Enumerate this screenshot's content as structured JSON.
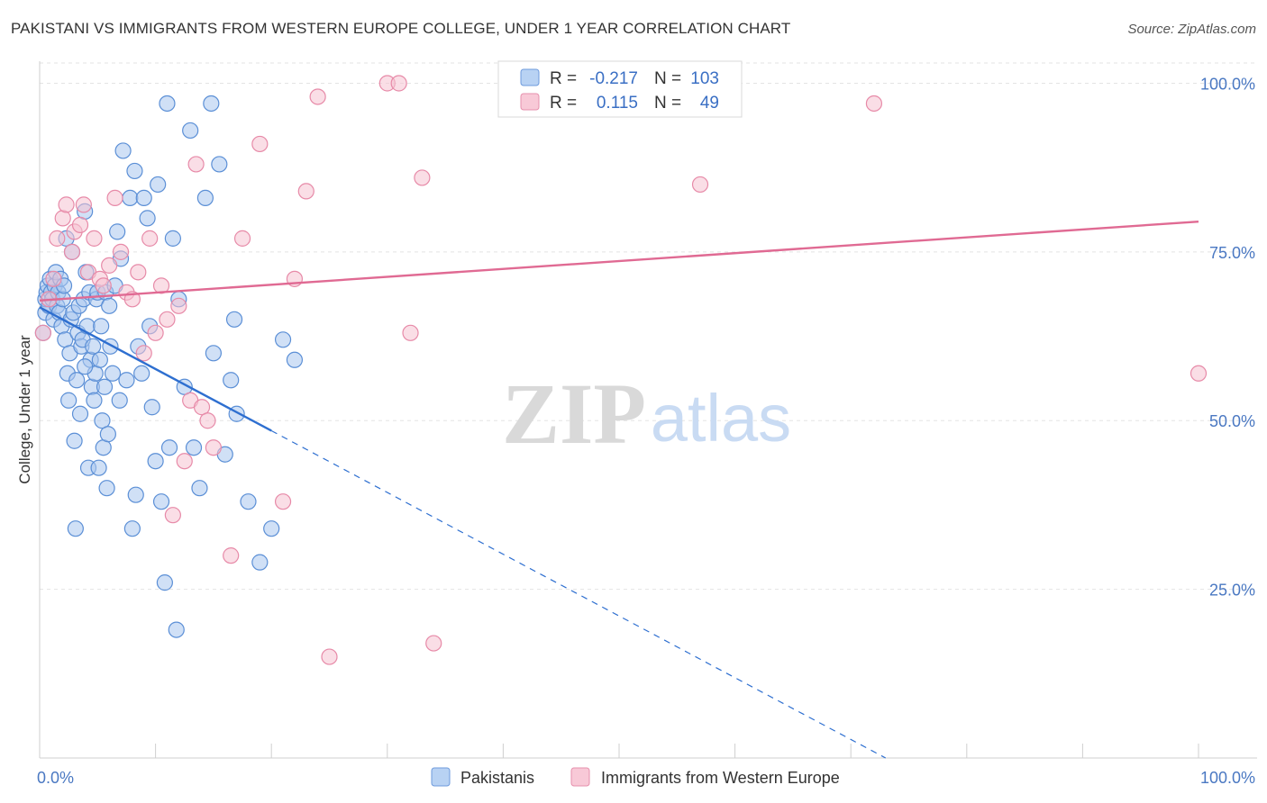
{
  "header": {
    "title": "PAKISTANI VS IMMIGRANTS FROM WESTERN EUROPE COLLEGE, UNDER 1 YEAR CORRELATION CHART",
    "source": "Source: ZipAtlas.com"
  },
  "watermark": {
    "zip": "ZIP",
    "atlas": "atlas"
  },
  "colors": {
    "blue_fill": "#a9c7ee",
    "blue_stroke": "#5b8fd6",
    "blue_line": "#2e6fd0",
    "pink_fill": "#f6c3d2",
    "pink_stroke": "#e78aa8",
    "pink_line": "#e06a93",
    "tick": "#4a78c2",
    "grid": "#e3e3e3"
  },
  "legend": {
    "rows": [
      {
        "r_label": "R =",
        "r_value": "-0.217",
        "n_label": "N =",
        "n_value": "103"
      },
      {
        "r_label": "R =",
        "r_value": "0.115",
        "n_label": "N =",
        "n_value": "49"
      }
    ]
  },
  "chart_data": {
    "type": "scatter",
    "title": "PAKISTANI VS IMMIGRANTS FROM WESTERN EUROPE COLLEGE, UNDER 1 YEAR CORRELATION CHART",
    "xlabel": "",
    "ylabel": "College, Under 1 year",
    "xlim": [
      0,
      100
    ],
    "ylim": [
      0,
      103
    ],
    "x_tick_labels": [
      "0.0%",
      "100.0%"
    ],
    "y_ticks": [
      25,
      50,
      75,
      100
    ],
    "y_tick_labels": [
      "25.0%",
      "50.0%",
      "75.0%",
      "100.0%"
    ],
    "legend_position": "bottom",
    "series": [
      {
        "name": "Pakistanis",
        "color": "blue",
        "r": -0.217,
        "n": 103,
        "trend": {
          "solid": [
            [
              0,
              66.8
            ],
            [
              20,
              48.5
            ]
          ],
          "dashed": [
            [
              20,
              48.5
            ],
            [
              73,
              0
            ]
          ]
        },
        "points": [
          [
            0.3,
            63
          ],
          [
            0.5,
            66
          ],
          [
            0.5,
            68
          ],
          [
            0.6,
            69
          ],
          [
            0.7,
            70
          ],
          [
            0.8,
            67
          ],
          [
            0.9,
            71
          ],
          [
            1.0,
            69
          ],
          [
            1.1,
            68
          ],
          [
            1.2,
            65
          ],
          [
            1.3,
            70
          ],
          [
            1.4,
            72
          ],
          [
            1.5,
            67
          ],
          [
            1.6,
            69
          ],
          [
            1.7,
            66
          ],
          [
            1.8,
            71
          ],
          [
            1.9,
            64
          ],
          [
            2.0,
            68
          ],
          [
            2.1,
            70
          ],
          [
            2.2,
            62
          ],
          [
            2.3,
            77
          ],
          [
            2.4,
            57
          ],
          [
            2.5,
            53
          ],
          [
            2.6,
            60
          ],
          [
            2.7,
            65
          ],
          [
            2.8,
            75
          ],
          [
            2.9,
            66
          ],
          [
            3.0,
            47
          ],
          [
            3.1,
            34
          ],
          [
            3.2,
            56
          ],
          [
            3.3,
            63
          ],
          [
            3.4,
            67
          ],
          [
            3.5,
            51
          ],
          [
            3.6,
            61
          ],
          [
            3.7,
            62
          ],
          [
            3.8,
            68
          ],
          [
            3.9,
            81
          ],
          [
            4.0,
            72
          ],
          [
            4.1,
            64
          ],
          [
            4.2,
            43
          ],
          [
            4.3,
            69
          ],
          [
            4.4,
            59
          ],
          [
            4.5,
            55
          ],
          [
            4.6,
            61
          ],
          [
            4.7,
            53
          ],
          [
            4.8,
            57
          ],
          [
            4.9,
            68
          ],
          [
            5.0,
            69
          ],
          [
            5.1,
            43
          ],
          [
            5.2,
            59
          ],
          [
            5.3,
            64
          ],
          [
            5.4,
            50
          ],
          [
            5.5,
            46
          ],
          [
            5.6,
            55
          ],
          [
            5.7,
            69
          ],
          [
            5.8,
            40
          ],
          [
            5.9,
            48
          ],
          [
            6.0,
            67
          ],
          [
            6.1,
            61
          ],
          [
            6.3,
            57
          ],
          [
            6.5,
            70
          ],
          [
            6.7,
            78
          ],
          [
            6.9,
            53
          ],
          [
            7.0,
            74
          ],
          [
            7.2,
            90
          ],
          [
            7.5,
            56
          ],
          [
            7.8,
            83
          ],
          [
            8.0,
            34
          ],
          [
            8.2,
            87
          ],
          [
            8.3,
            39
          ],
          [
            8.5,
            61
          ],
          [
            8.8,
            57
          ],
          [
            9.0,
            83
          ],
          [
            9.3,
            80
          ],
          [
            9.5,
            64
          ],
          [
            9.7,
            52
          ],
          [
            10.0,
            44
          ],
          [
            10.2,
            85
          ],
          [
            10.5,
            38
          ],
          [
            10.8,
            26
          ],
          [
            11.0,
            97
          ],
          [
            11.2,
            46
          ],
          [
            11.5,
            77
          ],
          [
            11.8,
            19
          ],
          [
            12.0,
            68
          ],
          [
            12.5,
            55
          ],
          [
            13.0,
            93
          ],
          [
            13.3,
            46
          ],
          [
            13.8,
            40
          ],
          [
            14.3,
            83
          ],
          [
            15.0,
            60
          ],
          [
            15.5,
            88
          ],
          [
            16.0,
            45
          ],
          [
            16.5,
            56
          ],
          [
            17.0,
            51
          ],
          [
            18.0,
            38
          ],
          [
            19.0,
            29
          ],
          [
            20.0,
            34
          ],
          [
            21.0,
            62
          ],
          [
            22.0,
            59
          ],
          [
            14.8,
            97
          ],
          [
            16.8,
            65
          ],
          [
            3.9,
            58
          ]
        ]
      },
      {
        "name": "Immigrants from Western Europe",
        "color": "pink",
        "r": 0.115,
        "n": 49,
        "trend": {
          "solid": [
            [
              0,
              67.8
            ],
            [
              100,
              79.5
            ]
          ]
        },
        "points": [
          [
            0.3,
            63
          ],
          [
            0.8,
            68
          ],
          [
            1.2,
            71
          ],
          [
            1.5,
            77
          ],
          [
            2.0,
            80
          ],
          [
            2.3,
            82
          ],
          [
            2.8,
            75
          ],
          [
            3.0,
            78
          ],
          [
            3.5,
            79
          ],
          [
            3.8,
            82
          ],
          [
            4.2,
            72
          ],
          [
            4.7,
            77
          ],
          [
            5.2,
            71
          ],
          [
            5.5,
            70
          ],
          [
            6.0,
            73
          ],
          [
            6.5,
            83
          ],
          [
            7.0,
            75
          ],
          [
            7.5,
            69
          ],
          [
            8.0,
            68
          ],
          [
            8.5,
            72
          ],
          [
            9.0,
            60
          ],
          [
            9.5,
            77
          ],
          [
            10.0,
            63
          ],
          [
            10.5,
            70
          ],
          [
            11.0,
            65
          ],
          [
            11.5,
            36
          ],
          [
            12.0,
            67
          ],
          [
            12.5,
            44
          ],
          [
            13.0,
            53
          ],
          [
            13.5,
            88
          ],
          [
            14.0,
            52
          ],
          [
            14.5,
            50
          ],
          [
            15.0,
            46
          ],
          [
            16.5,
            30
          ],
          [
            17.5,
            77
          ],
          [
            19.0,
            91
          ],
          [
            21.0,
            38
          ],
          [
            22.0,
            71
          ],
          [
            23.0,
            84
          ],
          [
            24.0,
            98
          ],
          [
            25.0,
            15
          ],
          [
            30.0,
            100
          ],
          [
            31.0,
            100
          ],
          [
            32.0,
            63
          ],
          [
            33.0,
            86
          ],
          [
            34.0,
            17
          ],
          [
            57.0,
            85
          ],
          [
            72.0,
            97
          ],
          [
            100.0,
            57
          ]
        ]
      }
    ]
  },
  "bottom_legend": {
    "items": [
      {
        "label": "Pakistanis"
      },
      {
        "label": "Immigrants from Western Europe"
      }
    ]
  }
}
